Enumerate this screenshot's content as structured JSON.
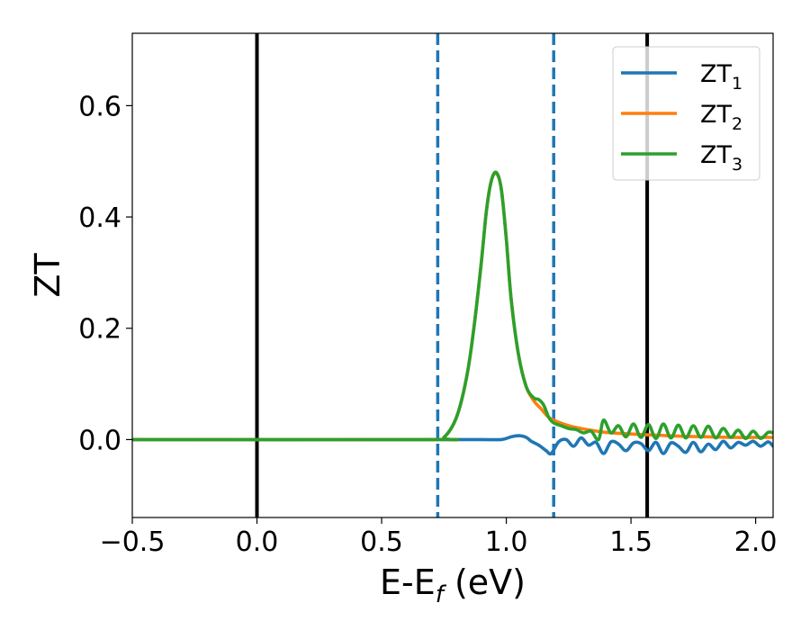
{
  "chart_data": {
    "type": "line",
    "xlabel": {
      "main": "E-E",
      "sub": "f",
      "unit": " (eV)"
    },
    "ylabel": "ZT",
    "xlim": [
      -0.5,
      2.07
    ],
    "ylim": [
      -0.14,
      0.73
    ],
    "grid": false,
    "legend_position": "top-right",
    "x_ticks": [
      {
        "value": -0.5,
        "label": "−0.5"
      },
      {
        "value": 0.0,
        "label": "0.0"
      },
      {
        "value": 0.5,
        "label": "0.5"
      },
      {
        "value": 1.0,
        "label": "1.0"
      },
      {
        "value": 1.5,
        "label": "1.5"
      },
      {
        "value": 2.0,
        "label": "2.0"
      }
    ],
    "y_ticks": [
      {
        "value": 0.0,
        "label": "0.0"
      },
      {
        "value": 0.2,
        "label": "0.2"
      },
      {
        "value": 0.4,
        "label": "0.4"
      },
      {
        "value": 0.6,
        "label": "0.6"
      }
    ],
    "vertical_lines": [
      {
        "x": 0.0,
        "style": "solid",
        "color": "#000000"
      },
      {
        "x": 1.565,
        "style": "solid",
        "color": "#000000"
      },
      {
        "x": 0.725,
        "style": "dashed",
        "color": "#1f77b4"
      },
      {
        "x": 1.19,
        "style": "dashed",
        "color": "#1f77b4"
      }
    ],
    "series": [
      {
        "name": "ZT",
        "sub": "1",
        "color": "#1f77b4",
        "x": [
          -0.5,
          0.7,
          0.9,
          0.98,
          1.02,
          1.05,
          1.08,
          1.1,
          1.13,
          1.16,
          1.18,
          1.21,
          1.24,
          1.27,
          1.3,
          1.33,
          1.36,
          1.39,
          1.42,
          1.45,
          1.48,
          1.51,
          1.54,
          1.57,
          1.6,
          1.63,
          1.66,
          1.69,
          1.72,
          1.75,
          1.78,
          1.81,
          1.84,
          1.87,
          1.9,
          1.93,
          1.96,
          1.99,
          2.02,
          2.05,
          2.07
        ],
        "y": [
          0.0,
          0.0,
          0.0,
          0.0,
          0.005,
          0.007,
          0.004,
          -0.003,
          -0.01,
          -0.02,
          -0.025,
          -0.004,
          0.0,
          -0.012,
          0.003,
          -0.01,
          -0.005,
          -0.025,
          -0.004,
          -0.008,
          -0.02,
          -0.006,
          -0.007,
          -0.02,
          -0.005,
          -0.025,
          -0.006,
          -0.012,
          -0.023,
          -0.005,
          -0.022,
          -0.008,
          -0.018,
          -0.003,
          -0.015,
          -0.005,
          -0.01,
          -0.003,
          -0.012,
          -0.004,
          -0.012
        ]
      },
      {
        "name": "ZT",
        "sub": "2",
        "color": "#ff7f0e",
        "x": [
          -0.5,
          0.7,
          0.75,
          0.8,
          0.84,
          0.87,
          0.9,
          0.92,
          0.94,
          0.96,
          0.98,
          1.0,
          1.02,
          1.05,
          1.08,
          1.11,
          1.14,
          1.17,
          1.2,
          1.25,
          1.3,
          1.35,
          1.4,
          1.5,
          1.6,
          1.7,
          1.8,
          1.9,
          2.0,
          2.07
        ],
        "y": [
          0.0,
          0.0,
          0.004,
          0.04,
          0.11,
          0.2,
          0.32,
          0.41,
          0.465,
          0.478,
          0.45,
          0.36,
          0.25,
          0.15,
          0.095,
          0.07,
          0.055,
          0.04,
          0.033,
          0.025,
          0.02,
          0.016,
          0.013,
          0.01,
          0.008,
          0.006,
          0.005,
          0.004,
          0.004,
          0.004
        ]
      },
      {
        "name": "ZT",
        "sub": "3",
        "color": "#2ca02c",
        "x": [
          -0.5,
          0.7,
          0.75,
          0.8,
          0.84,
          0.87,
          0.9,
          0.92,
          0.94,
          0.96,
          0.98,
          1.0,
          1.02,
          1.05,
          1.08,
          1.11,
          1.13,
          1.15,
          1.17,
          1.19,
          1.22,
          1.25,
          1.28,
          1.31,
          1.34,
          1.37,
          1.39,
          1.42,
          1.45,
          1.48,
          1.51,
          1.54,
          1.57,
          1.6,
          1.63,
          1.66,
          1.69,
          1.72,
          1.75,
          1.78,
          1.81,
          1.84,
          1.87,
          1.9,
          1.93,
          1.96,
          1.99,
          2.02,
          2.05,
          2.07
        ],
        "y": [
          0.0,
          0.0,
          0.004,
          0.04,
          0.11,
          0.2,
          0.32,
          0.41,
          0.465,
          0.48,
          0.45,
          0.36,
          0.25,
          0.15,
          0.095,
          0.075,
          0.072,
          0.062,
          0.04,
          0.03,
          0.025,
          0.02,
          0.018,
          0.012,
          0.015,
          0.0,
          0.035,
          0.012,
          0.025,
          0.005,
          0.028,
          0.004,
          0.027,
          0.002,
          0.028,
          0.003,
          0.026,
          0.003,
          0.025,
          0.004,
          0.024,
          0.003,
          0.02,
          0.004,
          0.017,
          0.002,
          0.015,
          0.002,
          0.013,
          0.012
        ]
      }
    ]
  }
}
